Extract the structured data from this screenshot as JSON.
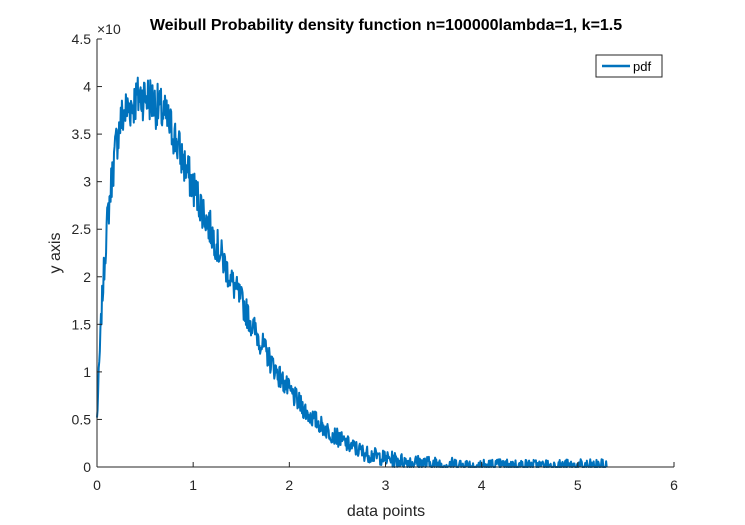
{
  "chart_data": {
    "type": "line",
    "title": "Weibull Probability density function n=100000lambda=1, k=1.5",
    "xlabel": "data points",
    "ylabel": "y axis",
    "xlim": [
      0,
      6
    ],
    "ylim": [
      0,
      4.5
    ],
    "x_ticks": [
      "0",
      "1",
      "2",
      "3",
      "4",
      "5",
      "6"
    ],
    "y_ticks": [
      "0",
      "0.5",
      "1",
      "1.5",
      "2",
      "2.5",
      "3",
      "3.5",
      "4",
      "4.5"
    ],
    "y_exponent_label": "×10",
    "legend": {
      "entries": [
        "pdf"
      ],
      "placement": "top-right"
    },
    "grid": false,
    "series": [
      {
        "name": "pdf",
        "color": "#0072BD",
        "x": [
          0.0,
          0.05,
          0.1,
          0.15,
          0.2,
          0.25,
          0.3,
          0.35,
          0.4,
          0.45,
          0.5,
          0.55,
          0.6,
          0.7,
          0.8,
          0.9,
          1.0,
          1.1,
          1.2,
          1.3,
          1.4,
          1.5,
          1.6,
          1.7,
          1.8,
          1.9,
          2.0,
          2.2,
          2.4,
          2.6,
          2.8,
          3.0,
          3.2,
          3.5,
          4.0,
          4.5,
          5.0,
          5.3
        ],
        "y": [
          0.5,
          1.7,
          2.5,
          3.0,
          3.4,
          3.65,
          3.75,
          3.8,
          3.85,
          3.9,
          3.9,
          3.88,
          3.82,
          3.7,
          3.5,
          3.2,
          2.95,
          2.7,
          2.45,
          2.2,
          1.95,
          1.75,
          1.52,
          1.32,
          1.12,
          0.95,
          0.8,
          0.55,
          0.38,
          0.24,
          0.14,
          0.09,
          0.06,
          0.03,
          0.01,
          0.005,
          0.002,
          0.002
        ]
      }
    ]
  }
}
